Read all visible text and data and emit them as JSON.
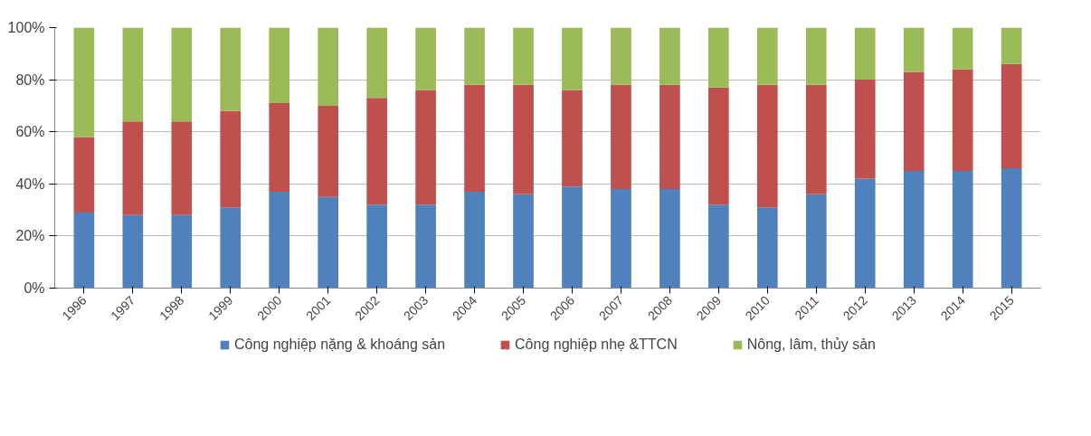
{
  "chart_data": {
    "type": "bar",
    "stacked": true,
    "categories": [
      "1996",
      "1997",
      "1998",
      "1999",
      "2000",
      "2001",
      "2002",
      "2003",
      "2004",
      "2005",
      "2006",
      "2007",
      "2008",
      "2009",
      "2010",
      "2011",
      "2012",
      "2013",
      "2014",
      "2015"
    ],
    "series": [
      {
        "name": "Công nghiệp nặng & khoáng sản",
        "color": "#4f81bd",
        "values": [
          29,
          28,
          28,
          31,
          37,
          35,
          32,
          32,
          37,
          36,
          39,
          38,
          38,
          32,
          31,
          36,
          42,
          45,
          45,
          46
        ]
      },
      {
        "name": "Công nghiệp nhẹ &TTCN",
        "color": "#c0504d",
        "values": [
          29,
          36,
          36,
          37,
          34,
          35,
          41,
          44,
          41,
          42,
          37,
          40,
          40,
          45,
          47,
          42,
          38,
          38,
          39,
          40
        ]
      },
      {
        "name": "Nông, lâm, thủy sản",
        "color": "#9bbb59",
        "values": [
          42,
          36,
          36,
          32,
          29,
          30,
          27,
          24,
          22,
          22,
          24,
          22,
          22,
          23,
          22,
          22,
          20,
          17,
          16,
          14
        ]
      }
    ],
    "ylim": [
      0,
      100
    ],
    "yticks": [
      {
        "value": 0,
        "label": "0%"
      },
      {
        "value": 20,
        "label": "20%"
      },
      {
        "value": 40,
        "label": "40%"
      },
      {
        "value": 60,
        "label": "60%"
      },
      {
        "value": 80,
        "label": "80%"
      },
      {
        "value": 100,
        "label": "100%"
      }
    ],
    "grid": "y",
    "legend": "bottom"
  }
}
